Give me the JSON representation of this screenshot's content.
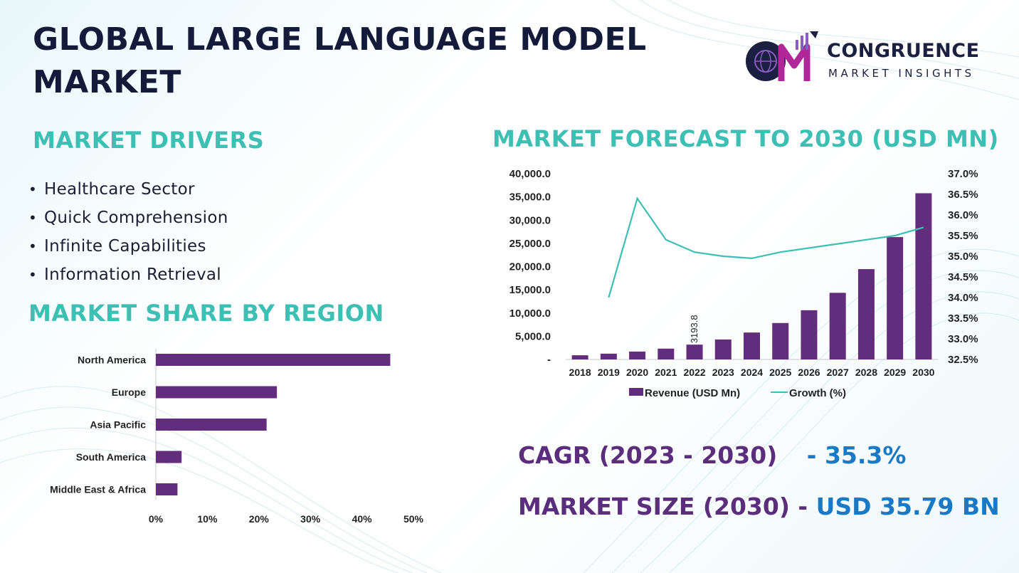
{
  "title_line1": "GLOBAL LARGE LANGUAGE MODEL",
  "title_line2": "MARKET",
  "logo": {
    "name": "CONGRUENCE",
    "subtitle": "MARKET INSIGHTS",
    "mark": "CM"
  },
  "drivers": {
    "heading": "MARKET DRIVERS",
    "items": [
      "Healthcare Sector",
      "Quick Comprehension",
      "Infinite Capabilities",
      "Information Retrieval"
    ]
  },
  "stats": {
    "cagr_label": "CAGR (2023 - 2030)",
    "cagr_value": "- 35.3%",
    "size_label": "MARKET SIZE (2030) -",
    "size_value": "USD 35.79 BN"
  },
  "colors": {
    "bar": "#622d7d",
    "line": "#3dbfb3",
    "heading": "#3dbfb3",
    "title": "#131a3a",
    "accent": "#1a79c4"
  },
  "chart_data": [
    {
      "type": "bar",
      "orientation": "horizontal",
      "title": "MARKET SHARE BY REGION",
      "categories": [
        "North America",
        "Europe",
        "Asia Pacific",
        "South America",
        "Middle East & Africa"
      ],
      "values": [
        45.5,
        23.5,
        21.5,
        5,
        4.2
      ],
      "xticks": [
        "0%",
        "10%",
        "20%",
        "30%",
        "40%",
        "50%"
      ],
      "xlim": [
        0,
        50
      ]
    },
    {
      "type": "bar",
      "title": "MARKET FORECAST TO 2030 (USD MN)",
      "categories": [
        "2018",
        "2019",
        "2020",
        "2021",
        "2022",
        "2023",
        "2024",
        "2025",
        "2026",
        "2027",
        "2028",
        "2029",
        "2030"
      ],
      "series": [
        {
          "name": "Revenue (USD Mn)",
          "type": "bar",
          "axis": "left",
          "values": [
            900,
            1250,
            1700,
            2330,
            3193.8,
            4300,
            5800,
            7850,
            10600,
            14350,
            19450,
            26350,
            35790
          ]
        },
        {
          "name": "Growth (%)",
          "type": "line",
          "axis": "right",
          "values": [
            null,
            34.0,
            36.4,
            35.4,
            35.1,
            35.0,
            34.95,
            35.1,
            35.2,
            35.3,
            35.4,
            35.5,
            35.7
          ]
        }
      ],
      "data_labels": [
        {
          "index": 4,
          "text": "3193.8"
        }
      ],
      "yticks_left": [
        "-",
        "5,000.0",
        "10,000.0",
        "15,000.0",
        "20,000.0",
        "25,000.0",
        "30,000.0",
        "35,000.0",
        "40,000.0"
      ],
      "yticks_right": [
        "32.5%",
        "33.0%",
        "33.5%",
        "34.0%",
        "34.5%",
        "35.0%",
        "35.5%",
        "36.0%",
        "36.5%",
        "37.0%"
      ],
      "ylim_left": [
        0,
        40000
      ],
      "ylim_right": [
        32.5,
        37.0
      ],
      "legend": "bottom"
    }
  ]
}
